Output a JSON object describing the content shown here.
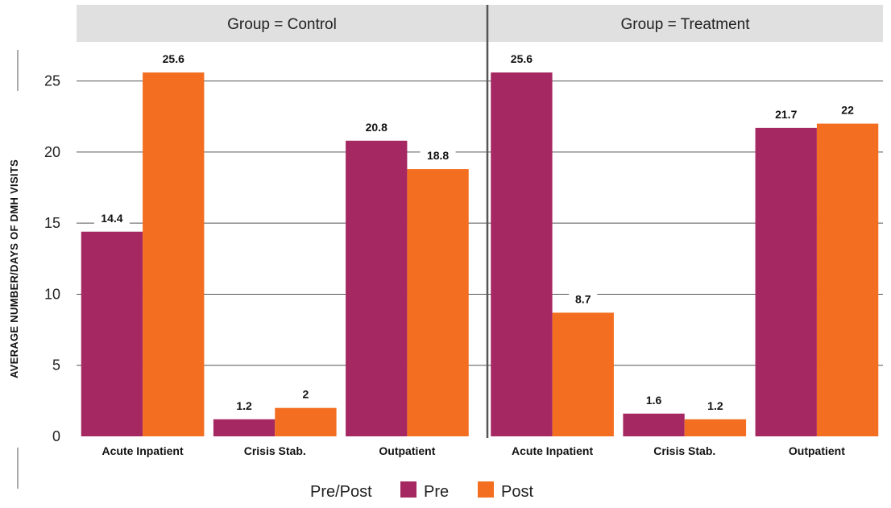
{
  "chart_data": {
    "type": "bar",
    "facet_label_prefix": "Group = ",
    "facets": [
      {
        "name": "Control",
        "categories": [
          "Acute Inpatient",
          "Crisis Stab.",
          "Outpatient"
        ],
        "series": [
          {
            "name": "Pre",
            "values": [
              14.4,
              1.2,
              20.8
            ]
          },
          {
            "name": "Post",
            "values": [
              25.6,
              2,
              18.8
            ]
          }
        ]
      },
      {
        "name": "Treatment",
        "categories": [
          "Acute Inpatient",
          "Crisis Stab.",
          "Outpatient"
        ],
        "series": [
          {
            "name": "Pre",
            "values": [
              25.6,
              1.6,
              21.7
            ]
          },
          {
            "name": "Post",
            "values": [
              8.7,
              1.2,
              22
            ]
          }
        ]
      }
    ],
    "xlabel": "",
    "ylabel": "AVERAGE NUMBER/DAYS OF DMH VISITS",
    "ylim": [
      0,
      27.3
    ],
    "yticks": [
      0,
      5,
      10,
      15,
      20,
      25
    ],
    "grid": true,
    "legend": {
      "title": "Pre/Post",
      "position": "bottom",
      "entries": [
        "Pre",
        "Post"
      ]
    },
    "colors": {
      "Pre": "#a52862",
      "Post": "#f36e21",
      "strip": "#e0e0e0",
      "grid": "#555555",
      "divider": "#555555"
    }
  }
}
